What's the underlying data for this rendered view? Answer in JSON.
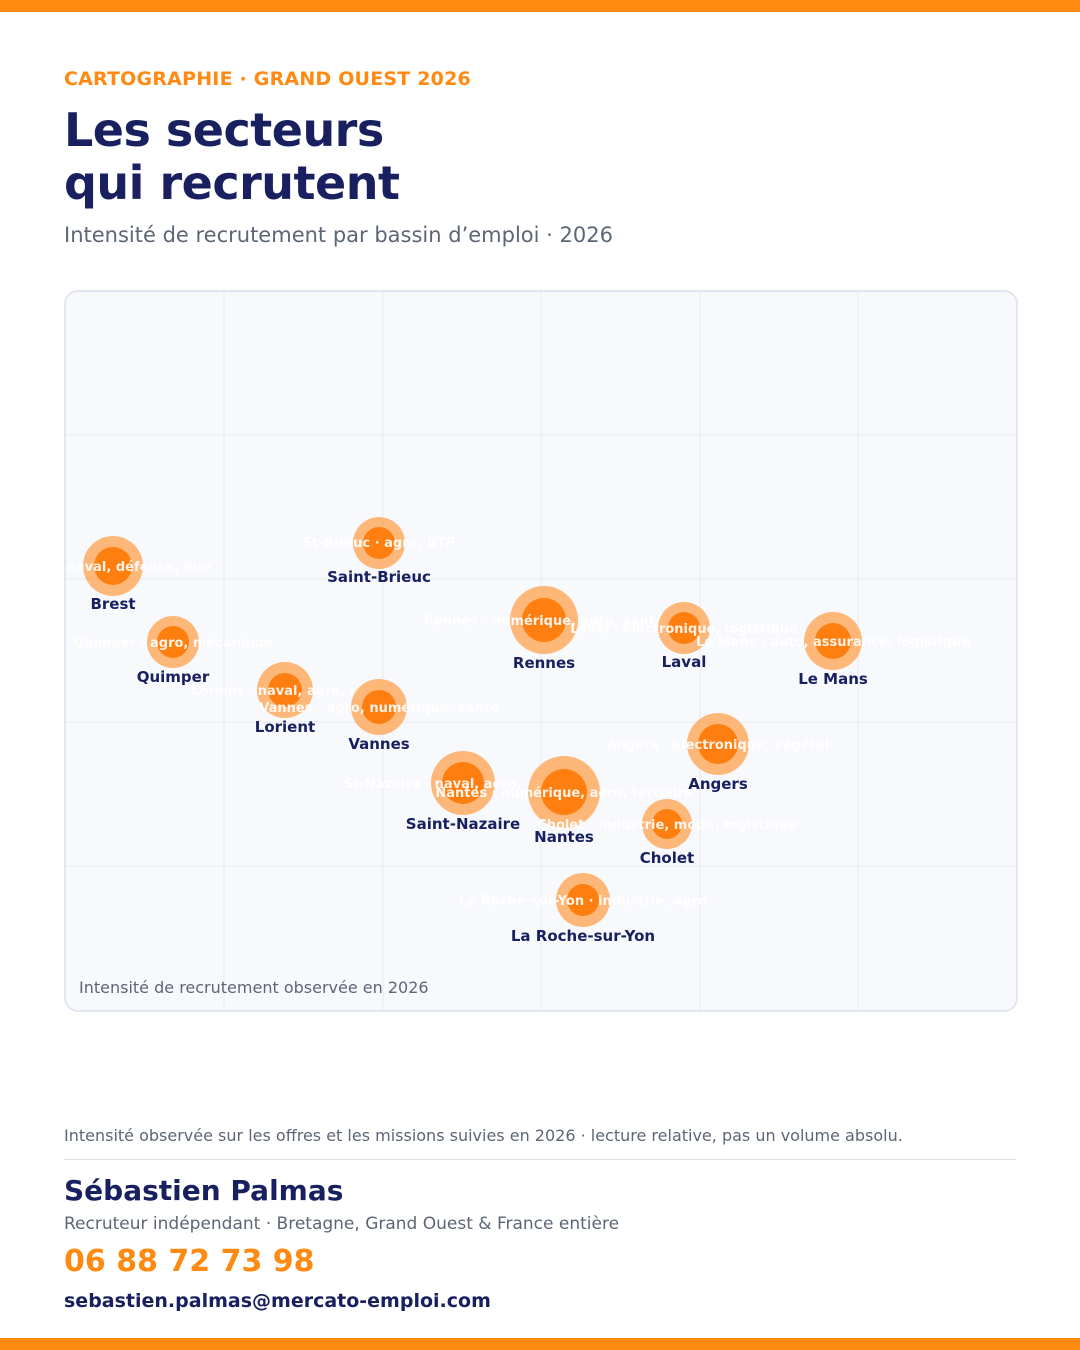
{
  "header": {
    "eyebrow": "CARTOGRAPHIE · GRAND OUEST 2026",
    "title_line1": "Les secteurs",
    "title_line2": "qui recrutent",
    "subtitle": "Intensité de recrutement par bassin d’emploi · 2026"
  },
  "map": {
    "note": "Intensité de recrutement observée en 2026",
    "colors": {
      "marker_core": "#ff7e10",
      "marker_halo": "#ffa24c",
      "name_text": "#182060",
      "grid": "#e7eaf2"
    },
    "basins": [
      {
        "name": "Brest",
        "sectors": "Brest · naval, défense, mer"
      },
      {
        "name": "Saint-Brieuc",
        "sectors": "St-Brieuc · agro, BTP"
      },
      {
        "name": "Quimper",
        "sectors": "Quimper · agro, mécanique"
      },
      {
        "name": "Rennes",
        "sectors": "Rennes · numérique, auto, santé"
      },
      {
        "name": "Laval",
        "sectors": "Laval · électronique, logistique"
      },
      {
        "name": "Le Mans",
        "sectors": "Le Mans · auto, assurance, logistique"
      },
      {
        "name": "Lorient",
        "sectors": "Lorient · naval, agro, mer"
      },
      {
        "name": "Vannes",
        "sectors": "Vannes · agro, numérique, santé"
      },
      {
        "name": "Angers",
        "sectors": "Angers · électronique, végétal"
      },
      {
        "name": "Saint-Nazaire",
        "sectors": "St-Nazaire · naval, aéro, énergie"
      },
      {
        "name": "Nantes",
        "sectors": "Nantes · numérique, aéro, tertiaire"
      },
      {
        "name": "Cholet",
        "sectors": "Cholet · industrie, mode, logistique"
      },
      {
        "name": "La Roche-sur-Yon",
        "sectors": "La Roche-sur-Yon · industrie, agro"
      }
    ]
  },
  "footer": {
    "footnote": "Intensité observée sur les offres et les missions suivies en 2026 · lecture relative, pas un volume absolu.",
    "name": "Sébastien Palmas",
    "role": "Recruteur indépendant · Bretagne, Grand Ouest & France entière",
    "phone": "06 88 72 73 98",
    "email": "sebastien.palmas@mercato-emploi.com"
  }
}
